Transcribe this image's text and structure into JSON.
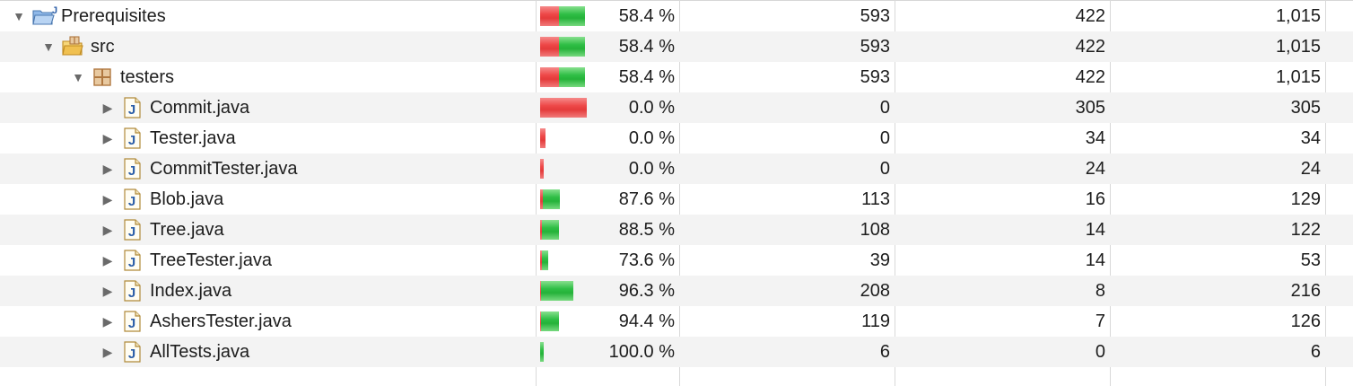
{
  "colors": {
    "covered": "#2fbe45",
    "missed": "#e43b3b",
    "alt_row": "#f3f3f3",
    "java_icon": "#2c5ea8",
    "folder": "#f0c050",
    "package": "#b07840"
  },
  "rows": [
    {
      "name": "Prerequisites",
      "icon": "project-folder-icon",
      "expanded": true,
      "percent": "58.4 %",
      "coverage": 0.584,
      "bar": "full",
      "covered": "593",
      "missed": "422",
      "total": "1,015"
    },
    {
      "name": "src",
      "icon": "source-folder-icon",
      "expanded": true,
      "percent": "58.4 %",
      "coverage": 0.584,
      "bar": "full",
      "covered": "593",
      "missed": "422",
      "total": "1,015"
    },
    {
      "name": "testers",
      "icon": "package-icon",
      "expanded": true,
      "percent": "58.4 %",
      "coverage": 0.584,
      "bar": "full",
      "covered": "593",
      "missed": "422",
      "total": "1,015"
    },
    {
      "name": "Commit.java",
      "icon": "java-file-icon",
      "expanded": false,
      "percent": "0.0 %",
      "coverage": 0.0,
      "covered": "0",
      "missed": "305",
      "total": "305"
    },
    {
      "name": "Tester.java",
      "icon": "java-file-icon",
      "expanded": false,
      "percent": "0.0 %",
      "coverage": 0.0,
      "covered": "0",
      "missed": "34",
      "total": "34"
    },
    {
      "name": "CommitTester.java",
      "icon": "java-file-icon",
      "expanded": false,
      "percent": "0.0 %",
      "coverage": 0.0,
      "covered": "0",
      "missed": "24",
      "total": "24"
    },
    {
      "name": "Blob.java",
      "icon": "java-file-icon",
      "expanded": false,
      "percent": "87.6 %",
      "coverage": 0.876,
      "covered": "113",
      "missed": "16",
      "total": "129"
    },
    {
      "name": "Tree.java",
      "icon": "java-file-icon",
      "expanded": false,
      "percent": "88.5 %",
      "coverage": 0.885,
      "covered": "108",
      "missed": "14",
      "total": "122"
    },
    {
      "name": "TreeTester.java",
      "icon": "java-file-icon",
      "expanded": false,
      "percent": "73.6 %",
      "coverage": 0.736,
      "covered": "39",
      "missed": "14",
      "total": "53"
    },
    {
      "name": "Index.java",
      "icon": "java-file-icon",
      "expanded": false,
      "percent": "96.3 %",
      "coverage": 0.963,
      "covered": "208",
      "missed": "8",
      "total": "216"
    },
    {
      "name": "AshersTester.java",
      "icon": "java-file-icon",
      "expanded": false,
      "percent": "94.4 %",
      "coverage": 0.944,
      "covered": "119",
      "missed": "7",
      "total": "126"
    },
    {
      "name": "AllTests.java",
      "icon": "java-file-icon",
      "expanded": false,
      "percent": "100.0 %",
      "coverage": 1.0,
      "covered": "6",
      "missed": "0",
      "total": "6"
    }
  ]
}
